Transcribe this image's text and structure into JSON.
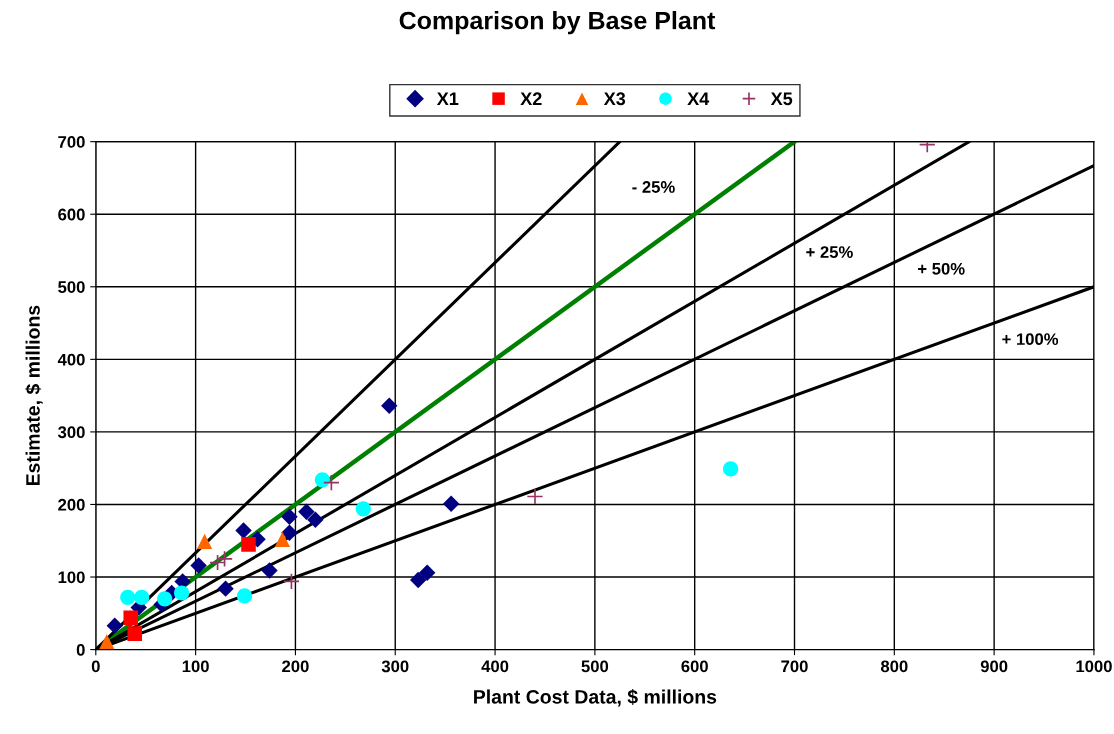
{
  "chart_data": {
    "type": "scatter",
    "title": "Comparison by Base Plant",
    "xlabel": "Plant Cost Data, $ millions",
    "ylabel": "Estimate, $ millions",
    "xlim": [
      0,
      1000
    ],
    "ylim": [
      0,
      700
    ],
    "xticks": [
      0,
      100,
      200,
      300,
      400,
      500,
      600,
      700,
      800,
      900,
      1000
    ],
    "yticks": [
      0,
      100,
      200,
      300,
      400,
      500,
      600,
      700
    ],
    "grid": true,
    "legend": "top",
    "series": [
      {
        "name": "X1",
        "marker": "diamond",
        "color": "#000080",
        "x": [
          19,
          43,
          66,
          76,
          87,
          103,
          130,
          148,
          162,
          174,
          194,
          194,
          211,
          220,
          294,
          356,
          323,
          332
        ],
        "values": [
          33,
          58,
          62,
          78,
          94,
          116,
          84,
          164,
          152,
          109,
          183,
          161,
          190,
          179,
          336,
          201,
          96,
          106
        ]
      },
      {
        "name": "X2",
        "marker": "square",
        "color": "#ff0000",
        "x": [
          35,
          39,
          153
        ],
        "values": [
          44,
          22,
          145
        ]
      },
      {
        "name": "X3",
        "marker": "triangle",
        "color": "#ff6600",
        "x": [
          11,
          109,
          187
        ],
        "values": [
          11,
          149,
          152
        ]
      },
      {
        "name": "X4",
        "marker": "circle",
        "color": "#00ffff",
        "x": [
          32,
          46,
          69,
          86,
          149,
          227,
          268,
          636
        ],
        "values": [
          72,
          72,
          70,
          78,
          74,
          234,
          194,
          249
        ]
      },
      {
        "name": "X5",
        "marker": "cross",
        "color": "#993366",
        "x": [
          122,
          129,
          196,
          236,
          440,
          833
        ],
        "values": [
          120,
          125,
          94,
          230,
          211,
          696
        ]
      },
      {
        "type": "line",
        "marker": "none",
        "color": "#008000",
        "x": [
          0,
          700
        ],
        "values": [
          0,
          700
        ]
      },
      {
        "type": "line",
        "marker": "none",
        "color": "#000000",
        "x": [
          0,
          525
        ],
        "values": [
          0,
          700
        ]
      },
      {
        "type": "line",
        "marker": "none",
        "color": "#000000",
        "x": [
          0,
          875
        ],
        "values": [
          0,
          700
        ]
      },
      {
        "type": "line",
        "marker": "none",
        "color": "#000000",
        "x": [
          0,
          1000
        ],
        "values": [
          0,
          667
        ]
      },
      {
        "type": "line",
        "marker": "none",
        "color": "#000000",
        "x": [
          0,
          1000
        ],
        "values": [
          0,
          500
        ]
      }
    ],
    "annotations": [
      "- 25%",
      "+ 25%",
      "+ 50%",
      "+ 100%"
    ]
  }
}
